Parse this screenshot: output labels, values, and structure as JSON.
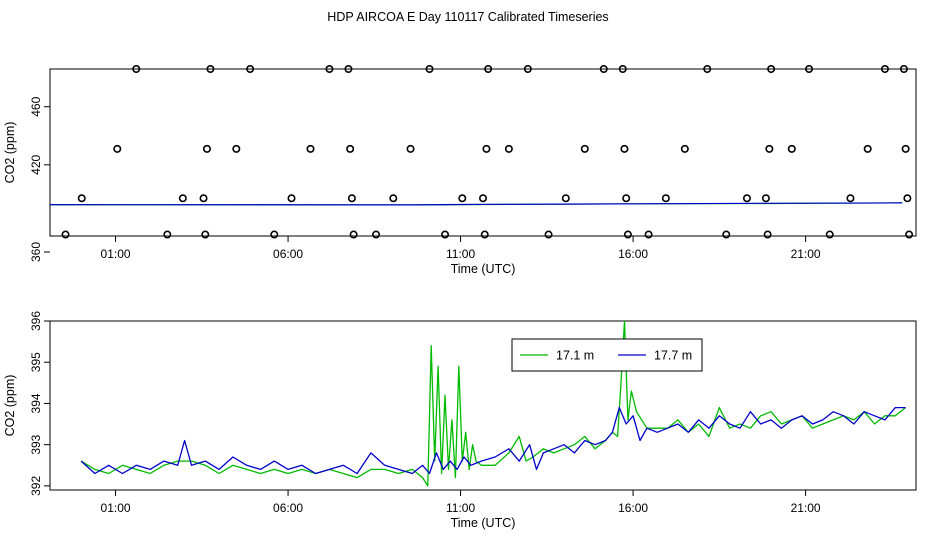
{
  "title": "HDP AIRCOA E  Day 110117  Calibrated Timeseries",
  "chart_data": [
    {
      "type": "scatter",
      "title": "HDP AIRCOA E  Day 110117  Calibrated Timeseries",
      "xlabel": "Time (UTC)",
      "ylabel": "CO2 (ppm)",
      "xlim": [
        -0.9,
        24.2
      ],
      "ylim": [
        371,
        486
      ],
      "x_ticks": [
        1,
        6,
        11,
        16,
        21
      ],
      "x_tick_labels": [
        "01:00",
        "06:00",
        "11:00",
        "16:00",
        "21:00"
      ],
      "y_ticks": [
        360,
        420,
        460
      ],
      "y_tick_labels": [
        "360",
        "420",
        "460"
      ],
      "calibration_points": {
        "x": [
          -0.45,
          0.02,
          1.05,
          1.6,
          2.5,
          2.95,
          3.55,
          3.6,
          3.65,
          3.75,
          4.5,
          4.9,
          5.6,
          6.1,
          6.65,
          7.2,
          7.75,
          7.8,
          7.85,
          7.9,
          8.55,
          9.05,
          9.55,
          10.1,
          10.55,
          11.05,
          11.65,
          11.7,
          11.75,
          11.8,
          12.4,
          12.95,
          13.55,
          14.05,
          14.6,
          15.15,
          15.7,
          15.75,
          15.8,
          15.85,
          16.45,
          16.95,
          17.5,
          18.15,
          18.7,
          19.3,
          19.85,
          19.9,
          19.95,
          20.0,
          20.6,
          21.1,
          21.7,
          22.3,
          22.8,
          23.3,
          23.85,
          23.9,
          23.95,
          24.0
        ],
        "y": [
          372,
          397,
          431,
          486,
          372,
          397,
          397,
          372,
          431,
          486,
          431,
          486,
          372,
          397,
          431,
          486,
          486,
          431,
          397,
          372,
          372,
          397,
          431,
          486,
          372,
          397,
          397,
          372,
          431,
          486,
          431,
          486,
          372,
          397,
          431,
          486,
          486,
          431,
          397,
          372,
          372,
          397,
          431,
          486,
          372,
          397,
          397,
          372,
          431,
          486,
          431,
          486,
          372,
          397,
          431,
          486,
          486,
          431,
          397,
          372
        ]
      },
      "series": [
        {
          "color": "#00bb00",
          "trend": [
            [
              -0.9,
              392.5
            ],
            [
              9.7,
              392.4
            ],
            [
              11.0,
              392.6
            ],
            [
              14.0,
              393.0
            ],
            [
              16.0,
              393.2
            ],
            [
              20.0,
              393.4
            ],
            [
              23.8,
              393.8
            ]
          ]
        },
        {
          "color": "#0000cc",
          "trend": [
            [
              -0.9,
              392.6
            ],
            [
              9.7,
              392.4
            ],
            [
              11.0,
              392.7
            ],
            [
              14.0,
              393.0
            ],
            [
              16.0,
              393.2
            ],
            [
              20.0,
              393.5
            ],
            [
              23.8,
              393.8
            ]
          ]
        }
      ]
    },
    {
      "type": "line",
      "xlabel": "Time (UTC)",
      "ylabel": "CO2 (ppm)",
      "xlim": [
        -0.9,
        24.2
      ],
      "ylim": [
        391.9,
        396.0
      ],
      "x_ticks": [
        1,
        6,
        11,
        16,
        21
      ],
      "x_tick_labels": [
        "01:00",
        "06:00",
        "11:00",
        "16:00",
        "21:00"
      ],
      "y_ticks": [
        392,
        393,
        394,
        395,
        396
      ],
      "y_tick_labels": [
        "392",
        "393",
        "394",
        "395",
        "396"
      ],
      "legend": {
        "position": "top",
        "entries": [
          "17.1 m",
          "17.7 m"
        ]
      },
      "series": [
        {
          "name": "17.1 m",
          "color": "#00bb00",
          "x": [
            0.0,
            0.4,
            0.8,
            1.2,
            1.6,
            2.0,
            2.4,
            2.8,
            3.2,
            3.6,
            4.0,
            4.4,
            4.8,
            5.2,
            5.6,
            6.0,
            6.4,
            6.8,
            7.2,
            7.6,
            8.0,
            8.4,
            8.8,
            9.2,
            9.6,
            9.9,
            10.05,
            10.15,
            10.25,
            10.35,
            10.45,
            10.55,
            10.65,
            10.75,
            10.85,
            10.95,
            11.05,
            11.15,
            11.25,
            11.35,
            11.45,
            11.6,
            12.0,
            12.4,
            12.7,
            12.9,
            13.1,
            13.4,
            13.7,
            14.0,
            14.3,
            14.6,
            14.9,
            15.2,
            15.4,
            15.55,
            15.65,
            15.75,
            15.85,
            15.95,
            16.1,
            16.4,
            16.7,
            17.0,
            17.3,
            17.6,
            17.9,
            18.2,
            18.5,
            18.8,
            19.1,
            19.4,
            19.7,
            20.0,
            20.3,
            20.6,
            20.9,
            21.2,
            21.5,
            21.8,
            22.1,
            22.4,
            22.7,
            23.0,
            23.3,
            23.6,
            23.9
          ],
          "y": [
            392.6,
            392.4,
            392.3,
            392.5,
            392.4,
            392.3,
            392.5,
            392.6,
            392.6,
            392.5,
            392.3,
            392.5,
            392.4,
            392.3,
            392.4,
            392.3,
            392.4,
            392.3,
            392.4,
            392.3,
            392.2,
            392.4,
            392.4,
            392.3,
            392.4,
            392.2,
            392.0,
            395.4,
            392.6,
            394.9,
            392.3,
            394.2,
            392.4,
            393.6,
            392.2,
            394.9,
            392.6,
            393.3,
            392.4,
            393.0,
            392.6,
            392.5,
            392.5,
            392.8,
            393.2,
            392.6,
            392.7,
            392.9,
            392.8,
            392.9,
            393.0,
            393.2,
            392.9,
            393.1,
            393.3,
            393.2,
            394.5,
            396.0,
            393.6,
            394.3,
            393.8,
            393.4,
            393.4,
            393.4,
            393.6,
            393.3,
            393.5,
            393.2,
            393.9,
            393.4,
            393.5,
            393.4,
            393.7,
            393.8,
            393.5,
            393.6,
            393.7,
            393.4,
            393.5,
            393.6,
            393.7,
            393.6,
            393.8,
            393.5,
            393.7,
            393.7,
            393.9
          ]
        },
        {
          "name": "17.7 m",
          "color": "#0000cc",
          "x": [
            0.0,
            0.4,
            0.8,
            1.2,
            1.6,
            2.0,
            2.4,
            2.8,
            3.0,
            3.2,
            3.6,
            4.0,
            4.4,
            4.8,
            5.2,
            5.6,
            6.0,
            6.4,
            6.8,
            7.2,
            7.6,
            8.0,
            8.4,
            8.8,
            9.2,
            9.6,
            9.9,
            10.1,
            10.3,
            10.5,
            10.7,
            10.9,
            11.1,
            11.3,
            11.6,
            12.0,
            12.4,
            12.7,
            13.0,
            13.2,
            13.4,
            13.7,
            14.0,
            14.3,
            14.6,
            14.9,
            15.2,
            15.4,
            15.6,
            15.8,
            16.0,
            16.2,
            16.4,
            16.7,
            17.0,
            17.3,
            17.6,
            17.9,
            18.2,
            18.5,
            18.8,
            19.1,
            19.4,
            19.7,
            20.0,
            20.3,
            20.6,
            20.9,
            21.2,
            21.5,
            21.8,
            22.1,
            22.4,
            22.7,
            23.0,
            23.3,
            23.6,
            23.9
          ],
          "y": [
            392.6,
            392.3,
            392.5,
            392.3,
            392.5,
            392.4,
            392.6,
            392.5,
            393.1,
            392.5,
            392.6,
            392.4,
            392.7,
            392.5,
            392.4,
            392.6,
            392.4,
            392.5,
            392.3,
            392.4,
            392.5,
            392.3,
            392.8,
            392.5,
            392.4,
            392.3,
            392.5,
            392.3,
            392.8,
            392.4,
            392.6,
            392.4,
            392.7,
            392.5,
            392.6,
            392.7,
            392.9,
            392.6,
            393.0,
            392.4,
            392.8,
            392.9,
            393.0,
            392.8,
            393.1,
            393.0,
            393.1,
            393.3,
            393.9,
            393.5,
            393.7,
            393.1,
            393.4,
            393.3,
            393.4,
            393.5,
            393.3,
            393.6,
            393.4,
            393.7,
            393.5,
            393.4,
            393.8,
            393.5,
            393.6,
            393.4,
            393.6,
            393.7,
            393.5,
            393.6,
            393.8,
            393.7,
            393.5,
            393.8,
            393.7,
            393.6,
            393.9,
            393.9
          ]
        }
      ]
    }
  ]
}
